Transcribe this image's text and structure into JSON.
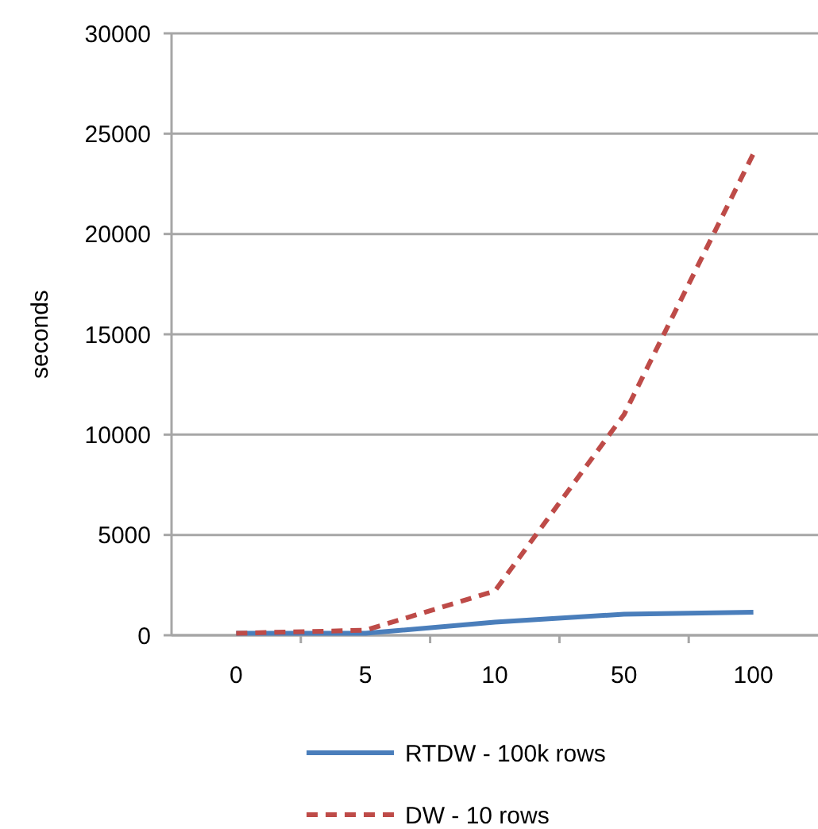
{
  "chart_data": {
    "type": "line",
    "ylabel": "seconds",
    "categories": [
      "0",
      "5",
      "10",
      "50",
      "100"
    ],
    "series": [
      {
        "name": "RTDW - 100k rows",
        "color": "#4a7ebb",
        "values": [
          100,
          100,
          650,
          1050,
          1150
        ],
        "line_style": "solid"
      },
      {
        "name": "DW - 10 rows",
        "color": "#be4b48",
        "values": [
          100,
          250,
          2200,
          11000,
          24000
        ],
        "line_style": "dashed"
      }
    ],
    "ylim": [
      0,
      30000
    ],
    "yticks": [
      0,
      5000,
      10000,
      15000,
      20000,
      25000,
      30000
    ],
    "grid": "y",
    "legend": "bottom",
    "marker": "none"
  }
}
